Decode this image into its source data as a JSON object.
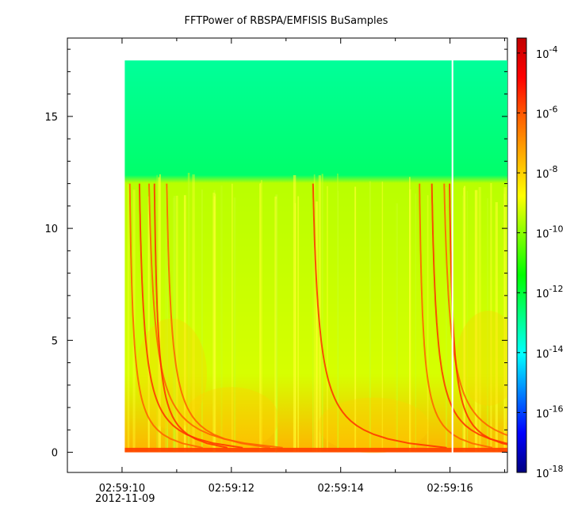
{
  "chart_data": {
    "type": "heatmap",
    "title": "FFTPower of RBSPA/EMFISIS  BuSamples",
    "xlabel": "",
    "ylabel": "",
    "x_ticks": [
      "02:59:10",
      "02:59:12",
      "02:59:14",
      "02:59:16"
    ],
    "x_tick_values": [
      0,
      2,
      4,
      6
    ],
    "x_date_label": "2012-11-09",
    "xlim": [
      -1,
      7.05
    ],
    "data_xrange": [
      0.05,
      7.05
    ],
    "y_ticks": [
      "0",
      "5",
      "10",
      "15"
    ],
    "y_tick_values": [
      0,
      5,
      10,
      15
    ],
    "ylim": [
      -0.9,
      18.5
    ],
    "data_yrange": [
      0,
      17.5
    ],
    "gap_x": [
      6.03,
      6.06
    ],
    "colorbar": {
      "scale": "log",
      "range_exponents": [
        -18,
        -3.5
      ],
      "tick_exponents": [
        -4,
        -6,
        -8,
        -10,
        -12,
        -14,
        -16,
        -18
      ],
      "tick_base": "10",
      "colors": [
        "#000080",
        "#0000ff",
        "#0080ff",
        "#00ffff",
        "#00ff80",
        "#00ff00",
        "#80ff00",
        "#ffff00",
        "#ffb000",
        "#ff6000",
        "#ff0000",
        "#c00000"
      ]
    },
    "background_levels": {
      "upper_band_exponent": -13,
      "lower_band_exponent": -9.5,
      "band_edge_y": 12.2
    },
    "chorus_curve_starts_x": [
      -0.1,
      0.05,
      0.2,
      0.35,
      0.55,
      3.2,
      5.2,
      5.4,
      5.6,
      5.75
    ]
  }
}
